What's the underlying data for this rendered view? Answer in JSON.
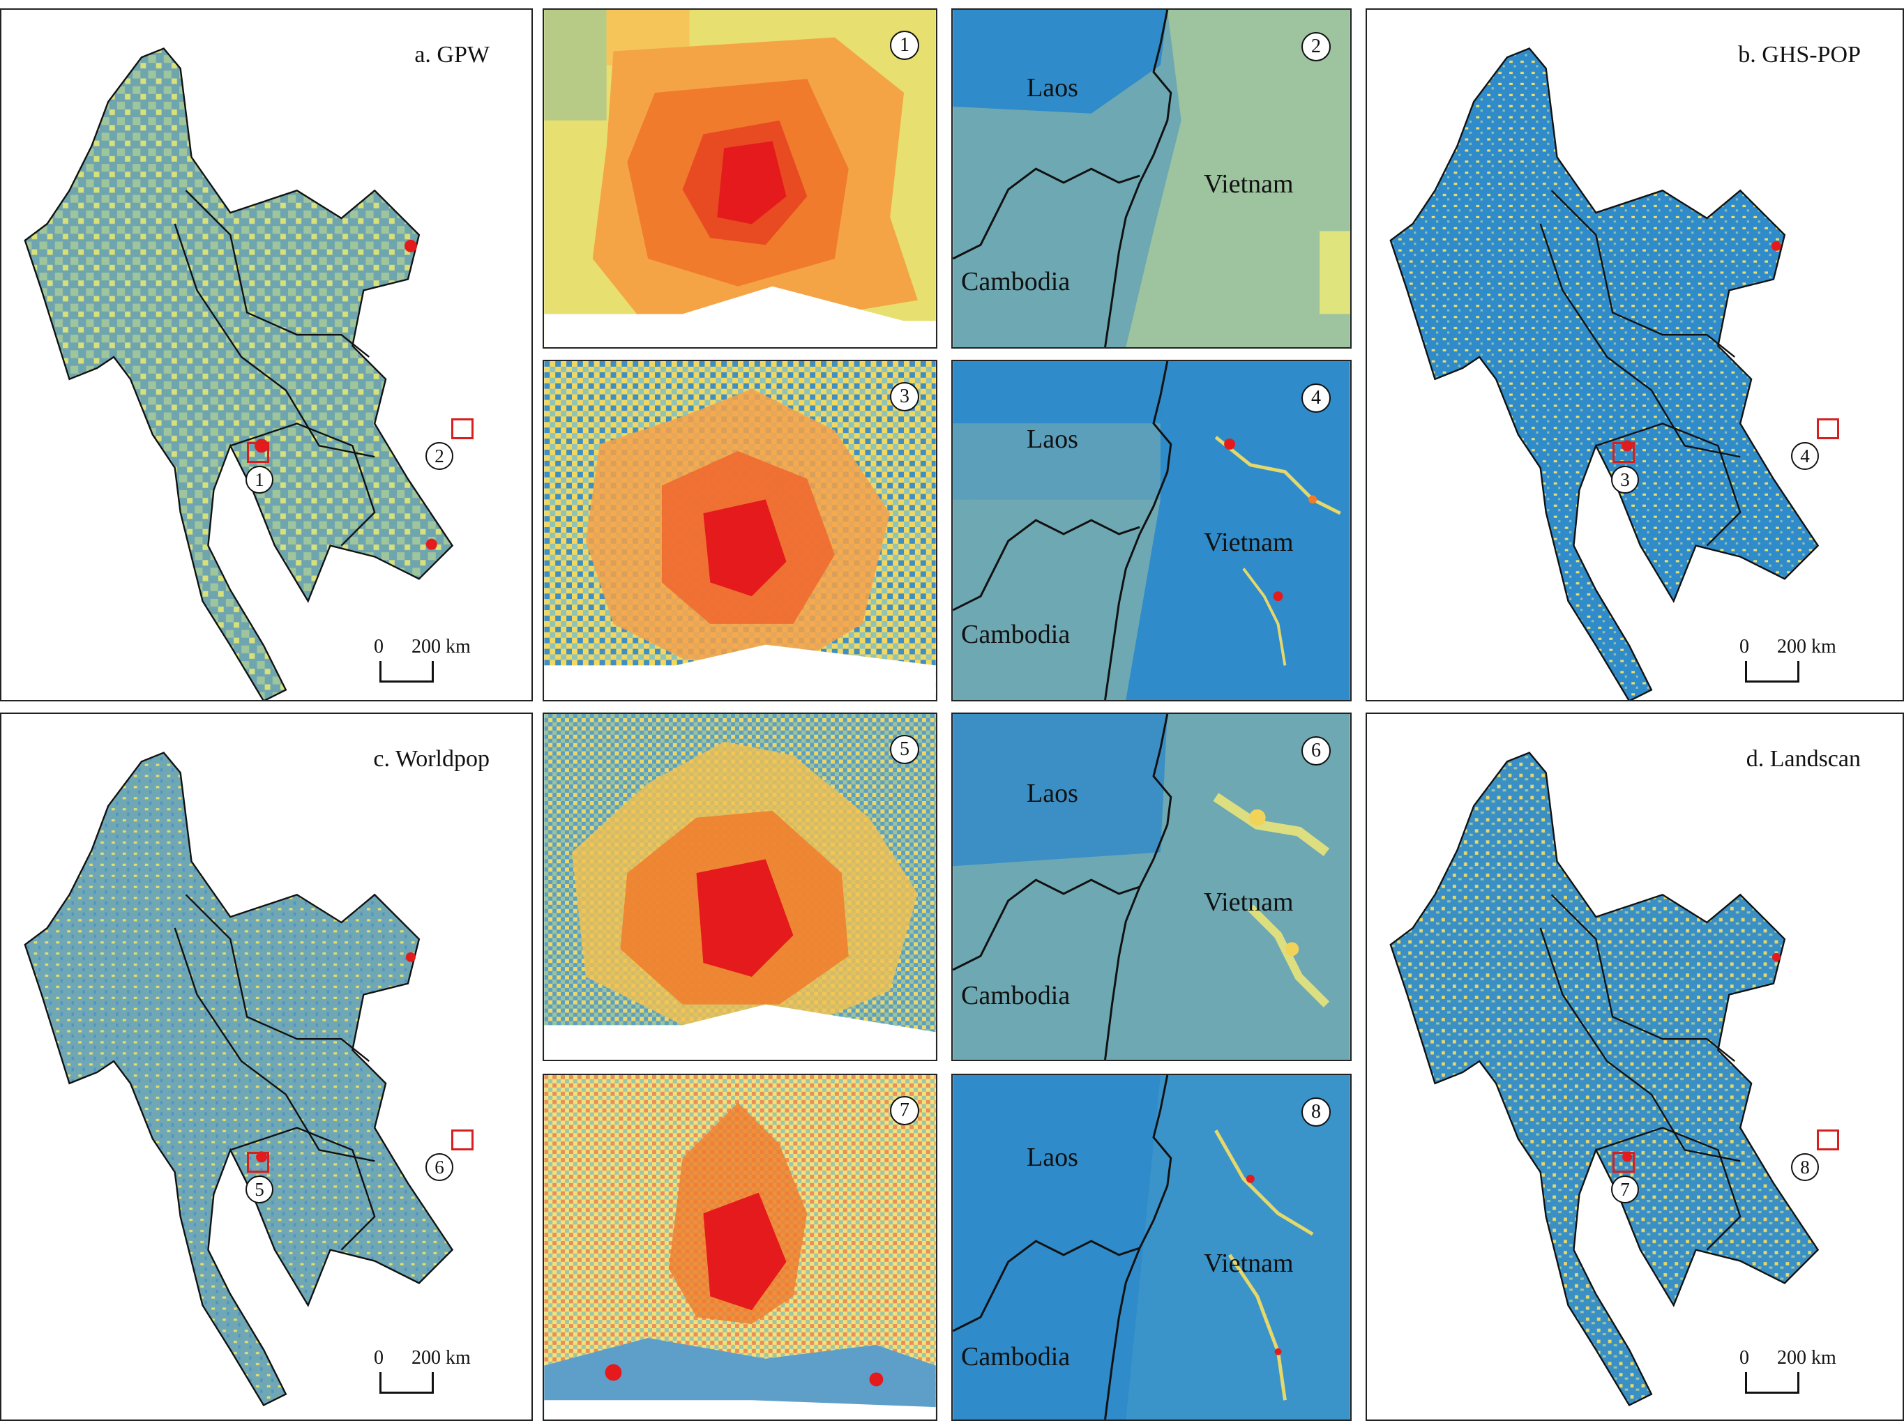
{
  "panels": {
    "a": {
      "title": "a. GPW"
    },
    "b": {
      "title": "b. GHS-POP"
    },
    "c": {
      "title": "c. Worldpop"
    },
    "d": {
      "title": "d. Landscan"
    }
  },
  "scalebar": {
    "zero": "0",
    "dist": "200 km"
  },
  "zoom_numbers": [
    "1",
    "2",
    "3",
    "4",
    "5",
    "6",
    "7",
    "8"
  ],
  "country_labels": {
    "laos": "Laos",
    "vietnam": "Vietnam",
    "cambodia": "Cambodia"
  },
  "colors": {
    "high": "#e41a1c",
    "mid_high": "#f26b2a",
    "mid": "#f6a34a",
    "low_mid": "#f3e06a",
    "low": "#6fa7b5",
    "lowest": "#2f8bc9",
    "box": "#d62020"
  }
}
